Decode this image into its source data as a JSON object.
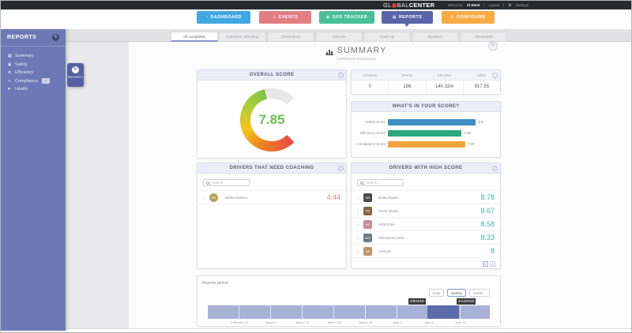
{
  "colors": {
    "topbar": "#26292d",
    "brand_red": "#d8383d",
    "dashboard_btn": "#42a7e0",
    "events_btn": "#e17e82",
    "gps_btn": "#49bf97",
    "reports_btn": "#5a64a8",
    "configure_btn": "#f8ab45",
    "sidebar": "#6d79b6",
    "score_bad": "#dd8380",
    "score_good": "#43b09b",
    "gauge_value": "#6abf4c",
    "timeline": "#a9b2d5",
    "timeline_selected": "#5b6cad"
  },
  "topbar": {
    "logo_prefix": "GL",
    "logo_mid": "BAL",
    "logo_suffix": "CENTER",
    "welcome": "Welcome",
    "username": "Al Elent",
    "logout": "Logout",
    "settings": "Settings"
  },
  "nav": {
    "dashboard": "DASHBOARD",
    "events": "EVENTS",
    "gps": "GPS TRACKER",
    "reports": "REPORTS",
    "configure": "CONFIGURE"
  },
  "tabs": [
    {
      "label": "All complaints"
    },
    {
      "label": "Collisions, Speeding"
    },
    {
      "label": "Connections"
    },
    {
      "label": "Vehicles"
    },
    {
      "label": "Trade Up"
    },
    {
      "label": "Business"
    },
    {
      "label": "Terminated"
    }
  ],
  "sidebar": {
    "title": "REPORTS",
    "items": [
      {
        "label": "Summary"
      },
      {
        "label": "Safety"
      },
      {
        "label": "Efficiency"
      },
      {
        "label": "Compliance"
      },
      {
        "label": "Health"
      }
    ],
    "handle_label": "REPORTS"
  },
  "page": {
    "title": "SUMMARY",
    "date_range": "(04/08/2018-04/14/2018)"
  },
  "overall": {
    "title": "OVERALL SCORE",
    "value": "7.85",
    "max": 10,
    "gauge_colors": [
      "#e84b3c",
      "#ee7e23",
      "#f5c51a",
      "#a8cf38",
      "#7dc243"
    ]
  },
  "stats": {
    "columns": [
      {
        "label": "Incidents",
        "value": "0"
      },
      {
        "label": "Events",
        "value": "186"
      },
      {
        "label": "Idle time",
        "value": "14h 32m"
      },
      {
        "label": "Miles",
        "value": "817.55"
      }
    ]
  },
  "breakdown": {
    "title": "WHAT'S IN YOUR SCORE?",
    "rows": [
      {
        "label": "Safety Score",
        "value": 8.9,
        "display": "8.9",
        "color": "#3e8ec4"
      },
      {
        "label": "Efficiency Score",
        "value": 7.46,
        "display": "7.46",
        "color": "#2aa87d"
      },
      {
        "label": "Compliance Score",
        "value": 7.87,
        "display": "7.87",
        "color": "#f2a33a"
      }
    ]
  },
  "coaching": {
    "title": "DRIVERS THAT NEED COACHING",
    "search_placeholder": "Search",
    "rows": [
      {
        "rank": "1",
        "name": "Stefan Radecu",
        "score": "4.44",
        "initials": "SR",
        "avatar_color": "#b5a25a"
      }
    ]
  },
  "high": {
    "title": "DRIVERS WITH HIGH SCORE",
    "search_placeholder": "Search",
    "rows": [
      {
        "rank": "1",
        "name": "Nolan Ryass",
        "score": "8.78",
        "initials": "NR",
        "avatar_color": "#4e4a45"
      },
      {
        "rank": "2",
        "name": "Pavor Reael",
        "score": "8.67",
        "initials": "PR",
        "avatar_color": "#8a6248"
      },
      {
        "rank": "3",
        "name": "Karli Erten",
        "score": "8.58",
        "initials": "KE",
        "avatar_color": "#c98c96"
      },
      {
        "rank": "4",
        "name": "Mihaliovas Oelin",
        "score": "8.33",
        "initials": "MO",
        "avatar_color": "#6e7a80"
      },
      {
        "rank": "5",
        "name": "Al Briott",
        "score": "8",
        "initials": "AB",
        "avatar_color": "#bd9468"
      }
    ],
    "pagination": [
      "1",
      "2"
    ]
  },
  "period": {
    "label": "Reports period",
    "buttons": [
      {
        "label": "daily"
      },
      {
        "label": "weekly"
      },
      {
        "label": "month..."
      }
    ],
    "markers": [
      "4/8/2018",
      "4/14/2018"
    ],
    "axis": [
      "February 25",
      "March 4",
      "March 11",
      "March 18",
      "March 25",
      "April 1",
      "April 8",
      "April 15"
    ]
  }
}
